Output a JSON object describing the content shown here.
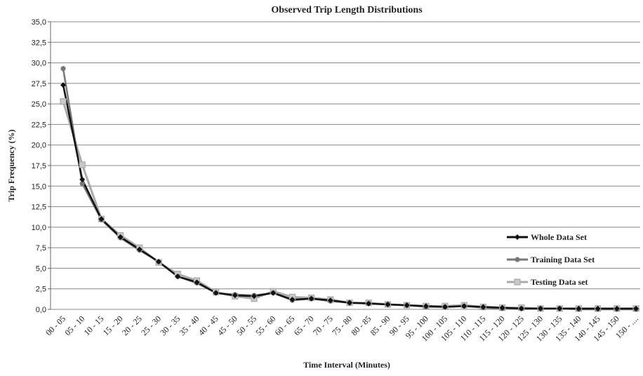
{
  "chart_data": {
    "type": "line",
    "title": "Observed Trip Length Distributions",
    "x_label": "Time Interval (Minutes)",
    "y_label": "Trip Frequency (%)",
    "categories": [
      "00 - 05",
      "05 - 10",
      "10 - 15",
      "15 - 20",
      "20 - 25",
      "25 - 30",
      "30 - 35",
      "35 - 40",
      "40 - 45",
      "45 - 50",
      "50 - 55",
      "55 - 60",
      "60 - 65",
      "65 - 70",
      "70 - 75",
      "75 - 80",
      "80 - 85",
      "85 - 90",
      "90 - 95",
      "95 - 100",
      "100 - 105",
      "105 - 110",
      "110 - 115",
      "115 - 120",
      "120 - 125",
      "125 - 130",
      "130 - 135",
      "135 - 140",
      "140 - 145",
      "145 - 150",
      "150 - ...."
    ],
    "series": [
      {
        "name": "Whole Data Set",
        "color": "#111111",
        "marker": "diamond",
        "values": [
          27.3,
          15.8,
          11.0,
          8.8,
          7.3,
          5.8,
          4.0,
          3.3,
          2.0,
          1.7,
          1.6,
          2.0,
          1.2,
          1.3,
          1.1,
          0.8,
          0.7,
          0.6,
          0.5,
          0.4,
          0.3,
          0.4,
          0.3,
          0.2,
          0.1,
          0.1,
          0.1,
          0.1,
          0.1,
          0.1,
          0.1
        ]
      },
      {
        "name": "Training Data Set",
        "color": "#777777",
        "marker": "circle",
        "values": [
          29.3,
          15.3,
          10.9,
          8.7,
          7.2,
          5.8,
          4.0,
          3.2,
          2.0,
          1.8,
          1.7,
          2.0,
          1.1,
          1.3,
          1.0,
          0.8,
          0.7,
          0.6,
          0.5,
          0.3,
          0.3,
          0.4,
          0.2,
          0.1,
          0.1,
          0.1,
          0.1,
          0.0,
          0.0,
          0.0,
          0.0
        ]
      },
      {
        "name": "Testing Data set",
        "color": "#aaaaaa",
        "marker": "square",
        "values": [
          25.3,
          17.6,
          11.0,
          9.0,
          7.5,
          5.7,
          4.3,
          3.5,
          2.1,
          1.6,
          1.3,
          2.2,
          1.5,
          1.4,
          1.2,
          0.8,
          0.8,
          0.6,
          0.5,
          0.4,
          0.4,
          0.5,
          0.3,
          0.2,
          0.2,
          0.1,
          0.1,
          0.1,
          0.1,
          0.1,
          0.1
        ]
      }
    ],
    "ylim": [
      0,
      35
    ],
    "yticks": [
      {
        "value": 0,
        "label": "0,0"
      },
      {
        "value": 2.5,
        "label": "2,5"
      },
      {
        "value": 5,
        "label": "5,0"
      },
      {
        "value": 7.5,
        "label": "7,5"
      },
      {
        "value": 10,
        "label": "10,0"
      },
      {
        "value": 12.5,
        "label": "12,5"
      },
      {
        "value": 15,
        "label": "15,0"
      },
      {
        "value": 17.5,
        "label": "17,5"
      },
      {
        "value": 20,
        "label": "20,0"
      },
      {
        "value": 22.5,
        "label": "22,5"
      },
      {
        "value": 25,
        "label": "25,0"
      },
      {
        "value": 27.5,
        "label": "27,5"
      },
      {
        "value": 30,
        "label": "30,0"
      },
      {
        "value": 32.5,
        "label": "32,5"
      },
      {
        "value": 35,
        "label": "35,0"
      }
    ],
    "grid": true,
    "legend": "right"
  }
}
